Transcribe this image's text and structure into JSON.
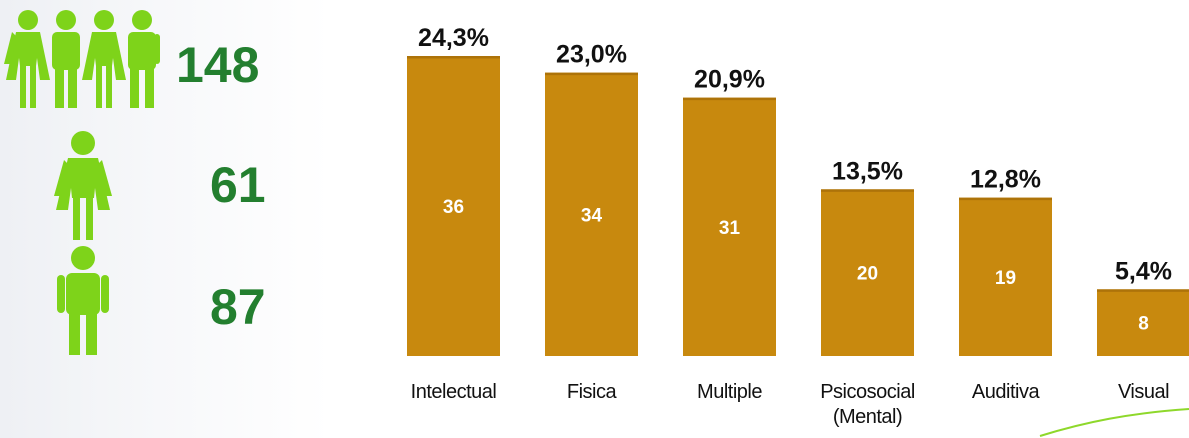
{
  "summary": {
    "total": {
      "icon": "family-icon",
      "value": "148"
    },
    "female": {
      "icon": "woman-icon",
      "value": "61"
    },
    "male": {
      "icon": "man-icon",
      "value": "87"
    },
    "icon_color": "#7ed31a",
    "number_color": "#237f2f"
  },
  "chart_data": {
    "type": "bar",
    "categories": [
      "Intelectual",
      "Fisica",
      "Multiple",
      "Psicosocial (Mental)",
      "Auditiva",
      "Visual"
    ],
    "category_lines": [
      [
        "Intelectual"
      ],
      [
        "Fisica"
      ],
      [
        "Multiple"
      ],
      [
        "Psicosocial",
        "(Mental)"
      ],
      [
        "Auditiva"
      ],
      [
        "Visual"
      ]
    ],
    "values": [
      36,
      34,
      31,
      20,
      19,
      8
    ],
    "percent_labels": [
      "24,3%",
      "23,0%",
      "20,9%",
      "13,5%",
      "12,8%",
      "5,4%"
    ],
    "bar_color": "#c8890e",
    "bar_top_color": "#ad7309",
    "value_label_color": "#ffffff",
    "ylim": [
      0,
      42
    ],
    "grid": false,
    "legend": "none",
    "title": "",
    "xlabel": "",
    "ylabel": ""
  }
}
